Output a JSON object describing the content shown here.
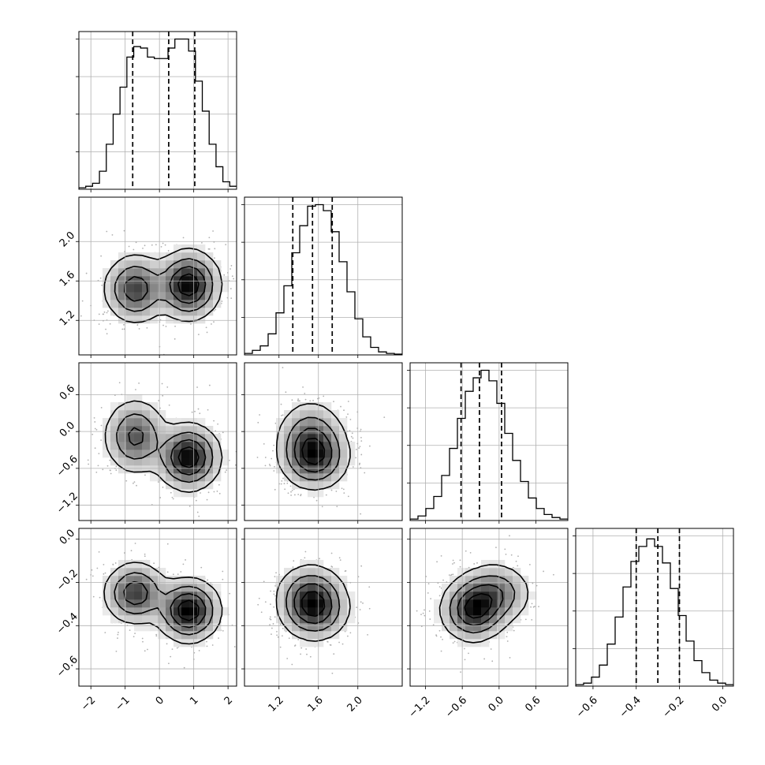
{
  "chart_data": {
    "type": "corner",
    "n_params": 4,
    "colors": {
      "line": "#000000",
      "grid": "#b0b0b0",
      "points": "#b0b0b0",
      "density_dark": "#000000",
      "background": "#ffffff"
    },
    "params": [
      {
        "range": [
          -2.35,
          2.25
        ],
        "ticks": [
          -2,
          -1,
          0,
          1,
          2
        ],
        "ticklabels": [
          "−2",
          "−1",
          "0",
          "1",
          "2"
        ]
      },
      {
        "range": [
          0.85,
          2.45
        ],
        "ticks": [
          1.2,
          1.6,
          2.0
        ],
        "ticklabels": [
          "1.2",
          "1.6",
          "2.0"
        ]
      },
      {
        "range": [
          -1.45,
          1.12
        ],
        "ticks": [
          -1.2,
          -0.6,
          0.0,
          0.6
        ],
        "ticklabels": [
          "−1.2",
          "−0.6",
          "0.0",
          "0.6"
        ]
      },
      {
        "range": [
          -0.68,
          0.05
        ],
        "ticks": [
          -0.6,
          -0.4,
          -0.2,
          0.0
        ],
        "ticklabels": [
          "−0.6",
          "−0.4",
          "−0.2",
          "0.0"
        ]
      }
    ],
    "histograms": [
      {
        "quantiles": [
          -0.78,
          0.27,
          1.03
        ],
        "ymax": 1.05,
        "counts": [
          0.01,
          0.02,
          0.04,
          0.12,
          0.3,
          0.5,
          0.68,
          0.88,
          0.95,
          0.94,
          0.88,
          0.87,
          0.87,
          0.94,
          1.0,
          1.0,
          0.92,
          0.72,
          0.52,
          0.3,
          0.15,
          0.05,
          0.02
        ]
      },
      {
        "quantiles": [
          1.34,
          1.54,
          1.74
        ],
        "ymax": 1.05,
        "counts": [
          0.01,
          0.03,
          0.06,
          0.14,
          0.28,
          0.46,
          0.68,
          0.86,
          0.99,
          1.0,
          0.96,
          0.82,
          0.62,
          0.42,
          0.24,
          0.12,
          0.05,
          0.02,
          0.01,
          0.005
        ]
      },
      {
        "quantiles": [
          -0.62,
          -0.32,
          0.04
        ],
        "ymax": 1.05,
        "counts": [
          0.01,
          0.03,
          0.08,
          0.16,
          0.3,
          0.48,
          0.68,
          0.86,
          0.95,
          1.0,
          0.93,
          0.78,
          0.58,
          0.4,
          0.26,
          0.15,
          0.08,
          0.04,
          0.02,
          0.01
        ]
      },
      {
        "quantiles": [
          -0.4,
          -0.3,
          -0.2
        ],
        "ymax": 1.05,
        "counts": [
          0.01,
          0.02,
          0.06,
          0.14,
          0.28,
          0.46,
          0.66,
          0.83,
          0.93,
          0.98,
          0.93,
          0.82,
          0.65,
          0.47,
          0.3,
          0.17,
          0.09,
          0.04,
          0.02,
          0.01
        ]
      }
    ],
    "components": [
      {
        "weight": 0.42,
        "mean": [
          -0.7,
          1.52,
          -0.08,
          -0.25
        ],
        "sd": [
          0.45,
          0.17,
          0.3,
          0.07
        ]
      },
      {
        "weight": 0.58,
        "mean": [
          0.85,
          1.56,
          -0.42,
          -0.33
        ],
        "sd": [
          0.45,
          0.17,
          0.26,
          0.07
        ]
      }
    ]
  }
}
